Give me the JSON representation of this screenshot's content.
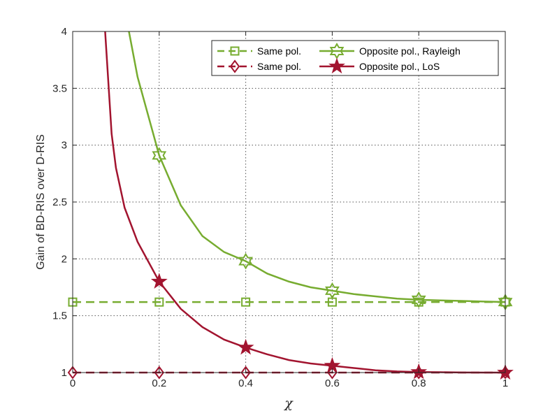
{
  "chart_data": {
    "type": "line",
    "title": "",
    "xlabel": "χ",
    "ylabel": "Gain of BD-RIS over D-RIS",
    "xlim": [
      0,
      1
    ],
    "ylim": [
      1,
      4
    ],
    "xticks": [
      0,
      0.2,
      0.4,
      0.6,
      0.8,
      1
    ],
    "xtick_labels": [
      "0",
      "0.2",
      "0.4",
      "0.6",
      "0.8",
      "1"
    ],
    "yticks": [
      1,
      1.5,
      2,
      2.5,
      3,
      3.5,
      4
    ],
    "ytick_labels": [
      "1",
      "1.5",
      "2",
      "2.5",
      "3",
      "3.5",
      "4"
    ],
    "grid": true,
    "legend_position": "top-right",
    "series": [
      {
        "name": "Same pol.",
        "color": "#77AC30",
        "line_style": "dashed",
        "marker": "square",
        "x": [
          0,
          0.2,
          0.4,
          0.6,
          0.8,
          1
        ],
        "y": [
          1.62,
          1.62,
          1.62,
          1.62,
          1.62,
          1.62
        ]
      },
      {
        "name": "Same pol.",
        "color": "#A2142F",
        "line_style": "dashed",
        "marker": "diamond",
        "x": [
          0,
          0.2,
          0.4,
          0.6,
          0.8,
          1
        ],
        "y": [
          1.0,
          1.0,
          1.0,
          1.0,
          1.0,
          1.0
        ]
      },
      {
        "name": "Opposite pol., Rayleigh",
        "color": "#77AC30",
        "line_style": "solid",
        "marker": "hexagram",
        "x": [
          0.13,
          0.15,
          0.2,
          0.25,
          0.3,
          0.35,
          0.4,
          0.45,
          0.5,
          0.55,
          0.6,
          0.65,
          0.7,
          0.75,
          0.8,
          0.85,
          0.9,
          0.95,
          1.0
        ],
        "y": [
          4.0,
          3.6,
          2.91,
          2.47,
          2.2,
          2.06,
          1.98,
          1.87,
          1.8,
          1.75,
          1.72,
          1.69,
          1.67,
          1.65,
          1.64,
          1.635,
          1.63,
          1.625,
          1.62
        ],
        "marker_x": [
          0.2,
          0.4,
          0.6,
          0.8,
          1.0
        ],
        "marker_y": [
          2.91,
          1.98,
          1.72,
          1.64,
          1.62
        ]
      },
      {
        "name": "Opposite pol., LoS",
        "color": "#A2142F",
        "line_style": "solid",
        "marker": "pentagram",
        "x": [
          0.075,
          0.09,
          0.1,
          0.12,
          0.15,
          0.2,
          0.25,
          0.3,
          0.35,
          0.4,
          0.45,
          0.5,
          0.55,
          0.6,
          0.65,
          0.7,
          0.75,
          0.8,
          0.85,
          0.9,
          0.95,
          1.0
        ],
        "y": [
          4.0,
          3.1,
          2.8,
          2.45,
          2.15,
          1.8,
          1.56,
          1.4,
          1.29,
          1.22,
          1.16,
          1.11,
          1.08,
          1.06,
          1.04,
          1.02,
          1.01,
          1.005,
          1.003,
          1.001,
          1.0,
          1.0
        ],
        "marker_x": [
          0.2,
          0.4,
          0.6,
          0.8,
          1.0
        ],
        "marker_y": [
          1.8,
          1.22,
          1.06,
          1.005,
          1.0
        ]
      }
    ]
  }
}
